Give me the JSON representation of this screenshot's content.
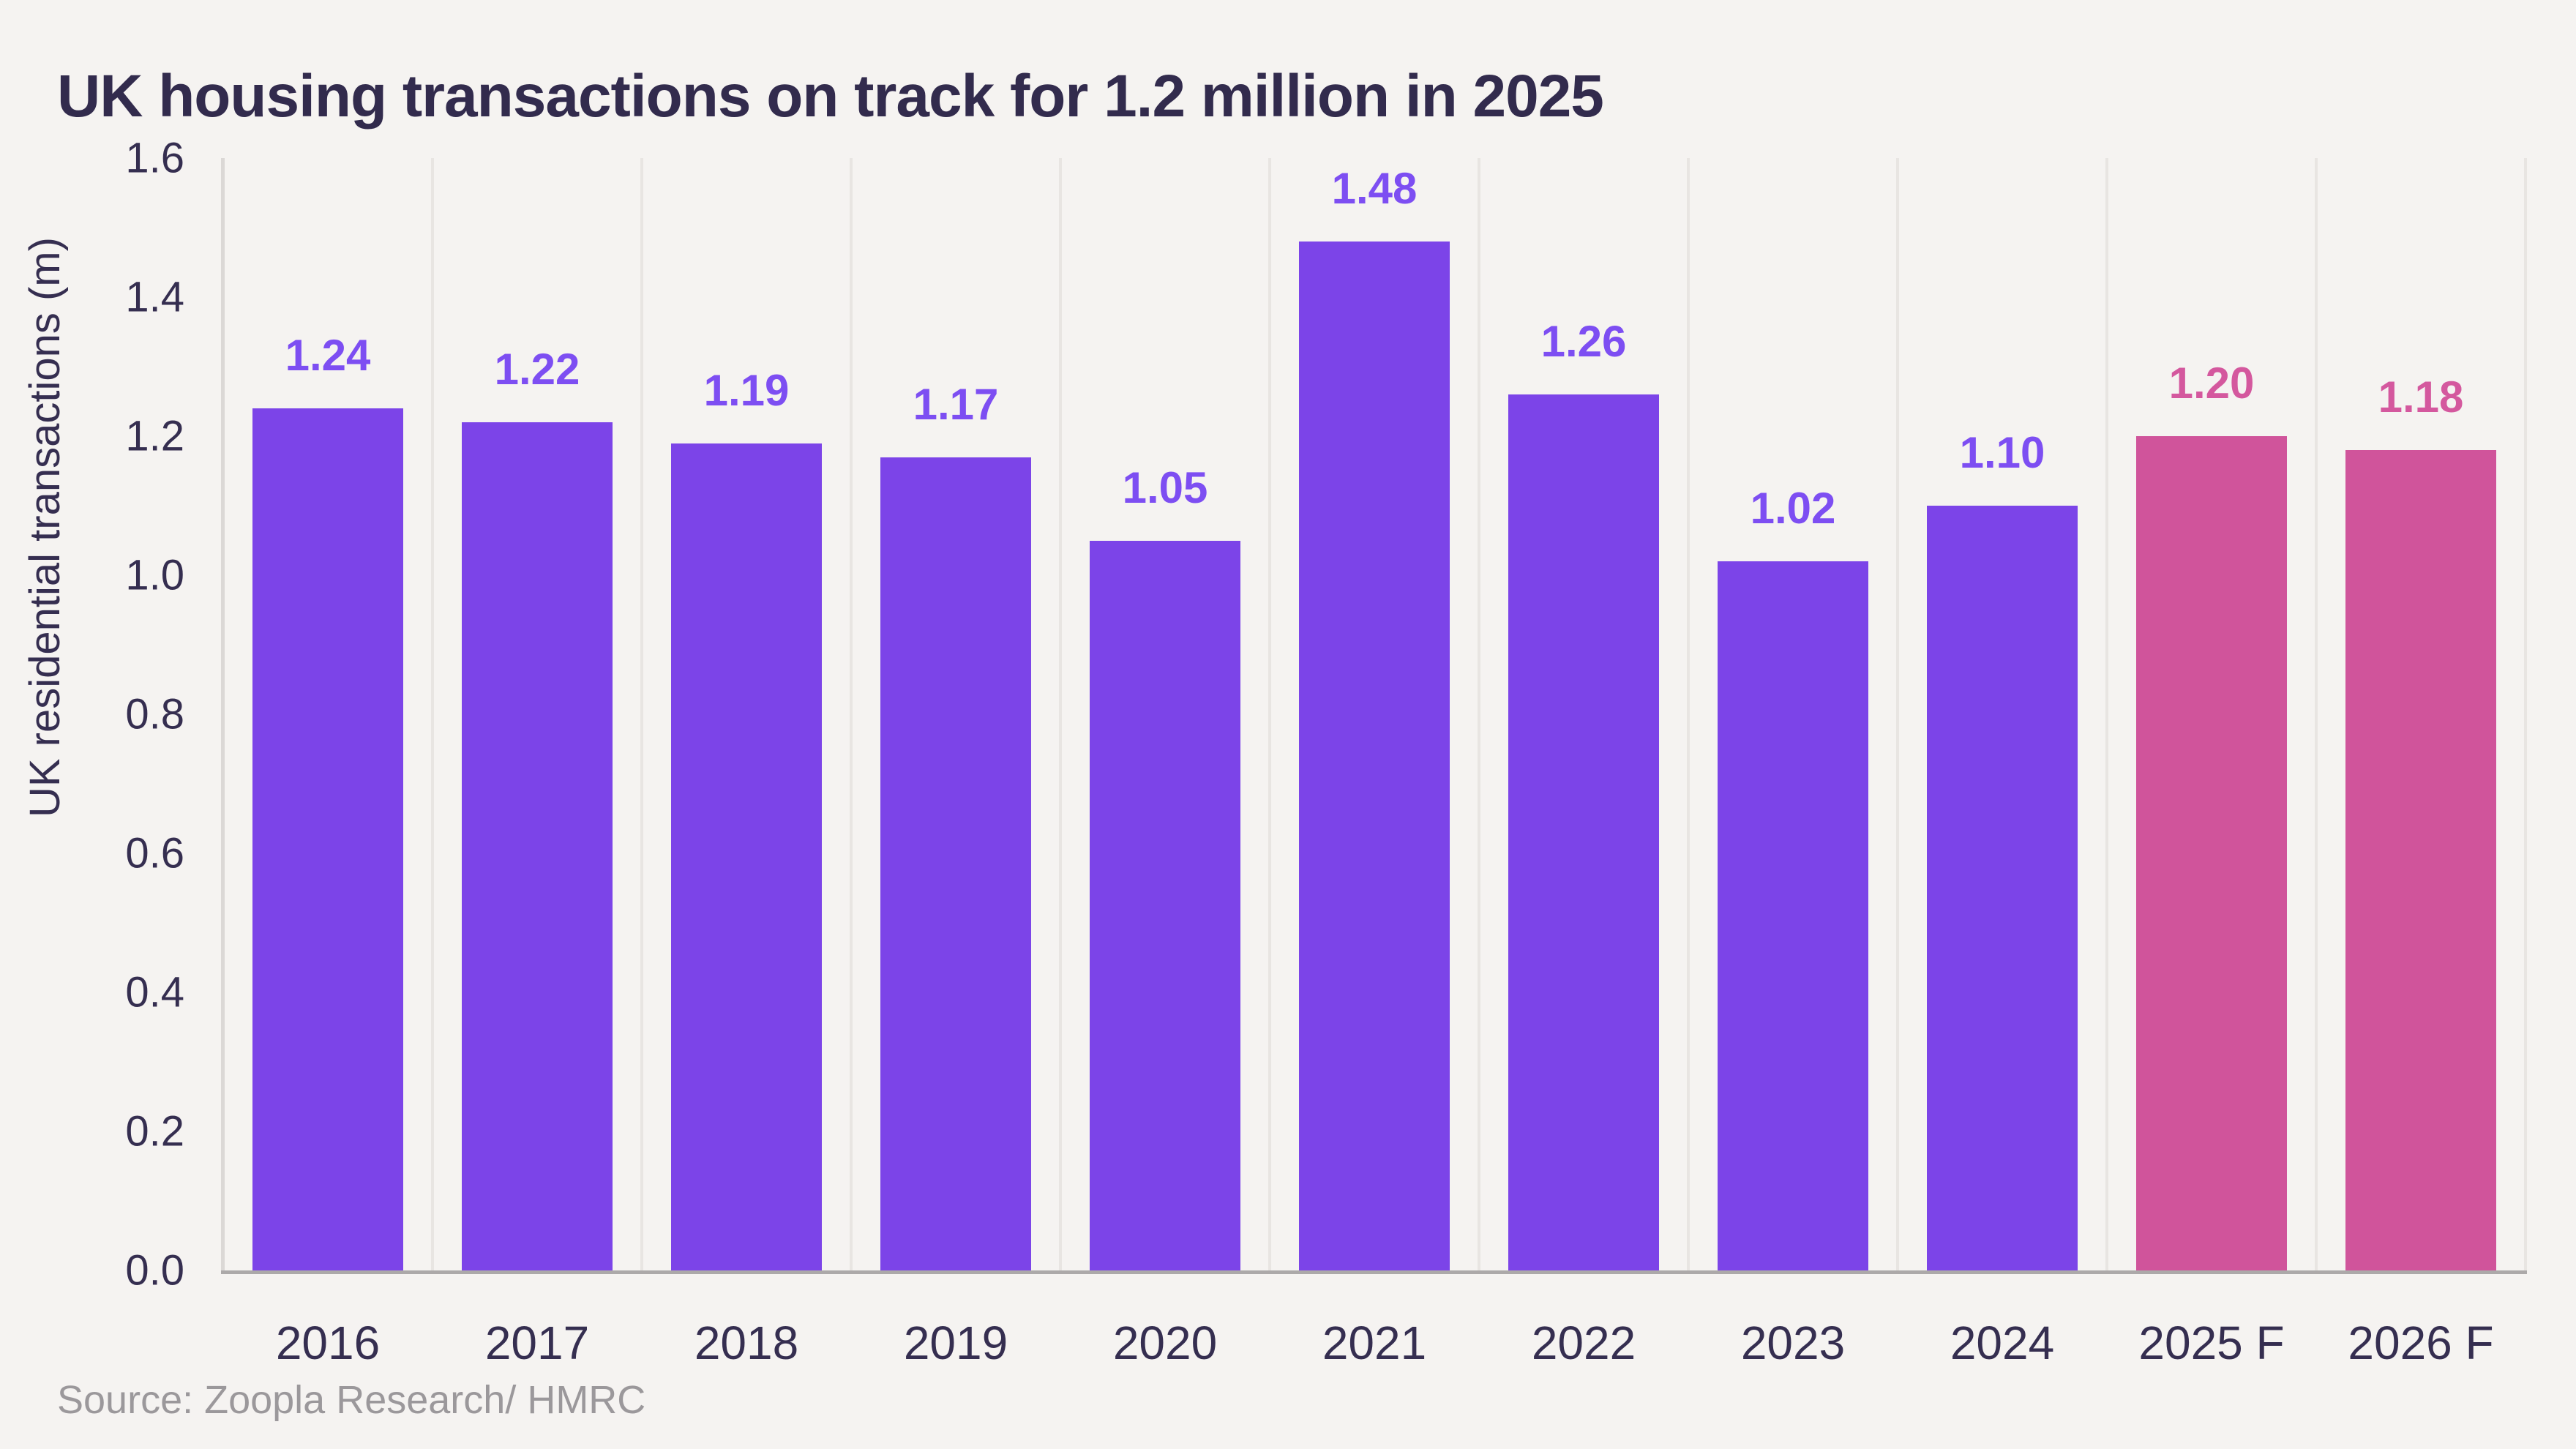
{
  "chart_data": {
    "type": "bar",
    "title": "UK housing transactions on track for 1.2 million in 2025",
    "ylabel": "UK residential transactions (m)",
    "source": "Source: Zoopla Research/ HMRC",
    "categories": [
      "2016",
      "2017",
      "2018",
      "2019",
      "2020",
      "2021",
      "2022",
      "2023",
      "2024",
      "2025 F",
      "2026 F"
    ],
    "values": [
      1.24,
      1.22,
      1.19,
      1.17,
      1.05,
      1.48,
      1.26,
      1.02,
      1.1,
      1.2,
      1.18
    ],
    "value_labels": [
      "1.24",
      "1.22",
      "1.19",
      "1.17",
      "1.05",
      "1.48",
      "1.26",
      "1.02",
      "1.10",
      "1.20",
      "1.18"
    ],
    "forecast": [
      false,
      false,
      false,
      false,
      false,
      false,
      false,
      false,
      false,
      true,
      true
    ],
    "ylim": [
      0,
      1.6
    ],
    "yticks": [
      "0.0",
      "0.2",
      "0.4",
      "0.6",
      "0.8",
      "1.0",
      "1.2",
      "1.4",
      "1.6"
    ],
    "grid": "vertical-category-dividers",
    "legend": "none",
    "colors": {
      "bar": "#7C44E8",
      "forecast_bar": "#D0549B",
      "bar_label": "#7D4EF2",
      "forecast_bar_label": "#D4589E",
      "title_text": "#322B4D",
      "axis_text": "#352E50",
      "source_text": "#9B989B",
      "background": "#F5F3F1",
      "gridline": "#E8E5E2",
      "y_axis_line": "#DBD8D6",
      "baseline": "#ACA9A9"
    }
  }
}
